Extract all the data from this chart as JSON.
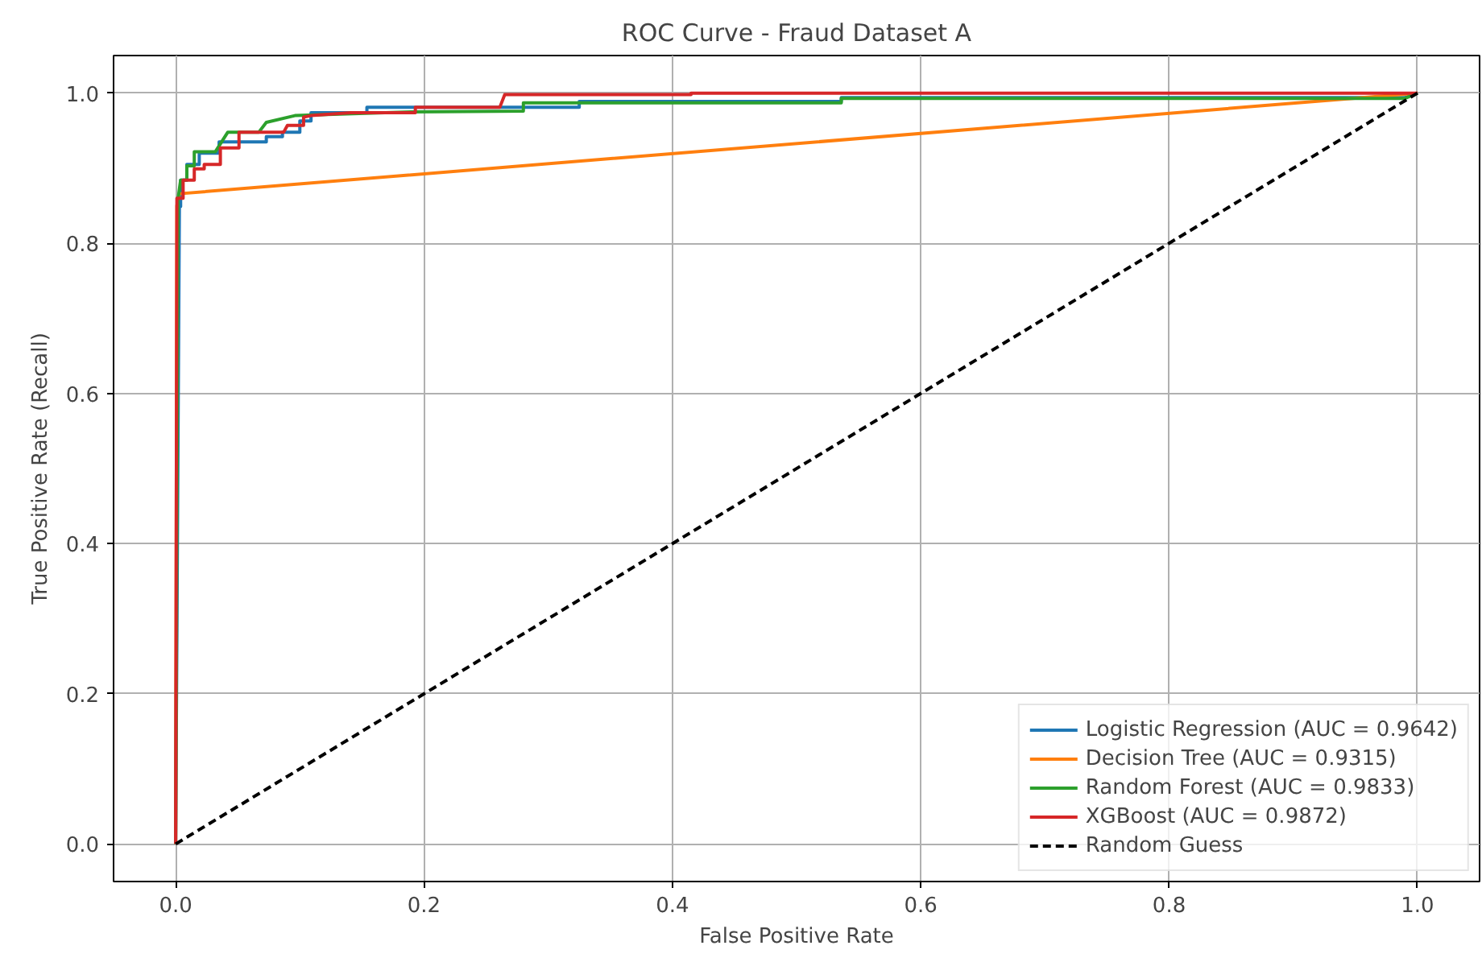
{
  "chart_data": {
    "type": "line",
    "title": "ROC Curve - Fraud Dataset A",
    "xlabel": "False Positive Rate",
    "ylabel": "True Positive Rate (Recall)",
    "xlim": [
      -0.05,
      1.05
    ],
    "ylim": [
      -0.05,
      1.05
    ],
    "xticks": [
      {
        "value": 0,
        "label": "0.0"
      },
      {
        "value": 0.2,
        "label": "0.2"
      },
      {
        "value": 0.4,
        "label": "0.4"
      },
      {
        "value": 0.6,
        "label": "0.6"
      },
      {
        "value": 0.8,
        "label": "0.8"
      },
      {
        "value": 1,
        "label": "1.0"
      }
    ],
    "yticks": [
      {
        "value": 0,
        "label": "0.0"
      },
      {
        "value": 0.2,
        "label": "0.2"
      },
      {
        "value": 0.4,
        "label": "0.4"
      },
      {
        "value": 0.6,
        "label": "0.6"
      },
      {
        "value": 0.8,
        "label": "0.8"
      },
      {
        "value": 1,
        "label": "1.0"
      }
    ],
    "grid": true,
    "legend": "bottom right",
    "line_style": "solid",
    "series": [
      {
        "name": "Logistic Regression (AUC = 0.9642)",
        "color": "#1f77b4",
        "x": [
          0,
          0.003,
          0.004,
          0.004,
          0.009,
          0.009,
          0.019,
          0.019,
          0.035,
          0.035,
          0.073,
          0.073,
          0.086,
          0.086,
          0.1,
          0.1,
          0.109,
          0.109,
          0.154,
          0.154,
          0.325,
          0.325,
          0.536,
          0.536,
          0.99,
          1.0
        ],
        "values": [
          0,
          0.849,
          0.849,
          0.884,
          0.884,
          0.905,
          0.905,
          0.92,
          0.92,
          0.935,
          0.935,
          0.942,
          0.942,
          0.948,
          0.948,
          0.963,
          0.963,
          0.974,
          0.974,
          0.981,
          0.981,
          0.989,
          0.989,
          0.994,
          0.994,
          1.0
        ]
      },
      {
        "name": "Decision Tree (AUC = 0.9315)",
        "color": "#ff7f0e",
        "x": [
          0,
          0.001,
          0.003,
          1.0
        ],
        "values": [
          0,
          0.85,
          0.866,
          1.0
        ]
      },
      {
        "name": "Random Forest (AUC = 0.9833)",
        "color": "#2ca02c",
        "x": [
          0,
          0.002,
          0.004,
          0.009,
          0.009,
          0.015,
          0.015,
          0.032,
          0.042,
          0.067,
          0.073,
          0.096,
          0.19,
          0.28,
          0.28,
          0.536,
          0.536,
          0.99,
          1.0
        ],
        "values": [
          0,
          0.86,
          0.884,
          0.884,
          0.903,
          0.903,
          0.922,
          0.922,
          0.948,
          0.948,
          0.961,
          0.97,
          0.975,
          0.976,
          0.987,
          0.987,
          0.993,
          0.993,
          1.0
        ]
      },
      {
        "name": "XGBoost (AUC = 0.9872)",
        "color": "#d62728",
        "x": [
          0,
          0.001,
          0.006,
          0.006,
          0.015,
          0.015,
          0.023,
          0.023,
          0.036,
          0.036,
          0.051,
          0.051,
          0.087,
          0.09,
          0.103,
          0.103,
          0.109,
          0.141,
          0.193,
          0.193,
          0.261,
          0.265,
          0.415,
          0.415,
          1.0
        ],
        "values": [
          0,
          0.86,
          0.86,
          0.884,
          0.884,
          0.899,
          0.899,
          0.905,
          0.905,
          0.927,
          0.927,
          0.948,
          0.948,
          0.957,
          0.957,
          0.968,
          0.97,
          0.974,
          0.974,
          0.981,
          0.981,
          0.998,
          0.998,
          1.0,
          1.0
        ]
      },
      {
        "name": "Random Guess",
        "color": "#000000",
        "line_style": "dashed",
        "x": [
          0,
          1
        ],
        "values": [
          0,
          1
        ]
      }
    ]
  }
}
